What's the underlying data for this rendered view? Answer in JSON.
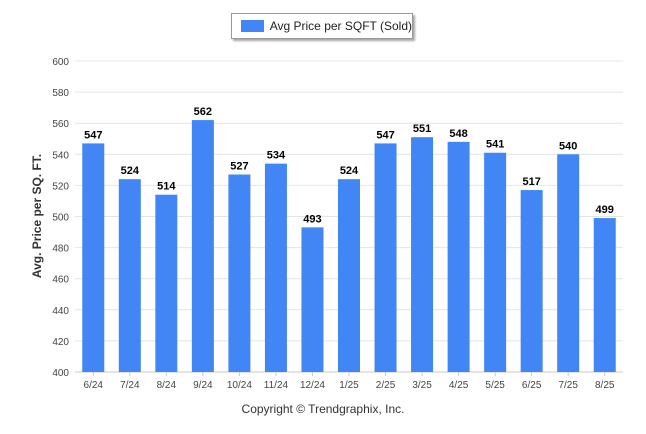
{
  "chart_data": {
    "type": "bar",
    "categories": [
      "6/24",
      "7/24",
      "8/24",
      "9/24",
      "10/24",
      "11/24",
      "12/24",
      "1/25",
      "2/25",
      "3/25",
      "4/25",
      "5/25",
      "6/25",
      "7/25",
      "8/25"
    ],
    "series": [
      {
        "name": "Avg Price per SQFT (Sold)",
        "values": [
          547,
          524,
          514,
          562,
          527,
          534,
          493,
          524,
          547,
          551,
          548,
          541,
          517,
          540,
          499
        ],
        "color": "#4285f4"
      }
    ],
    "title": "",
    "xlabel": "",
    "ylabel": "Avg. Price per SQ. FT.",
    "ylim": [
      400,
      600
    ],
    "yticks": [
      400,
      420,
      440,
      460,
      480,
      500,
      520,
      540,
      560,
      580,
      600
    ],
    "grid": true,
    "legend_position": "top-center",
    "data_labels": true
  },
  "footer": {
    "copyright": "Copyright © Trendgraphix, Inc."
  }
}
